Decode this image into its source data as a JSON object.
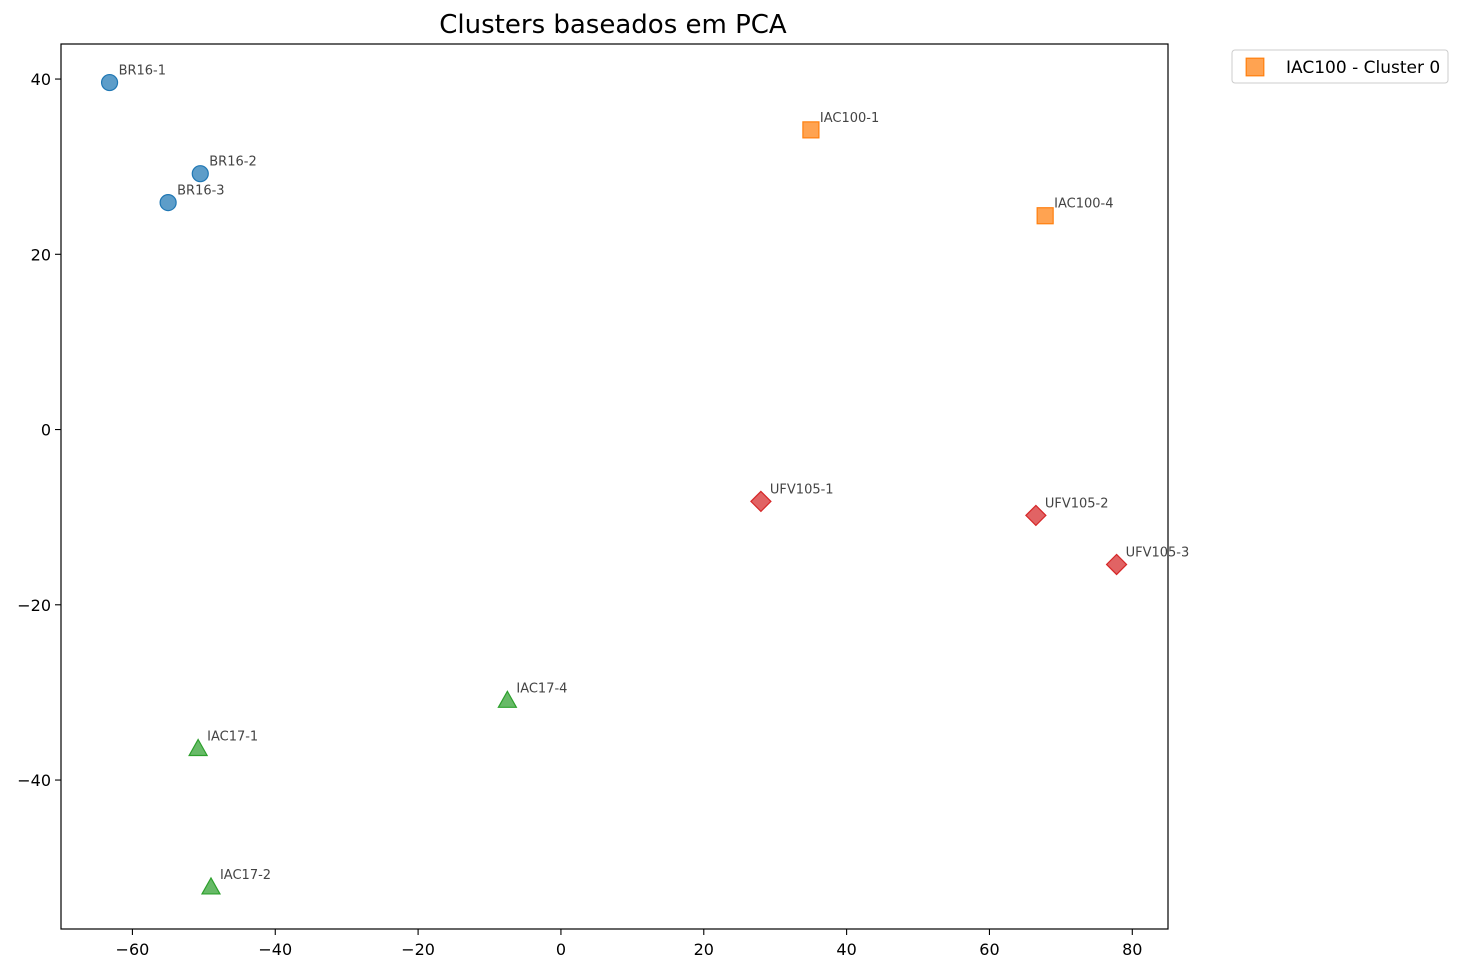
{
  "chart_data": {
    "type": "scatter",
    "title": "Clusters baseados em PCA",
    "xlabel": "",
    "ylabel": "",
    "xlim": [
      -70,
      85
    ],
    "ylim": [
      -57,
      44
    ],
    "x_ticks": [
      -60,
      -40,
      -20,
      0,
      20,
      40,
      60,
      80
    ],
    "y_ticks": [
      -40,
      -20,
      0,
      20,
      40
    ],
    "grid": false,
    "legend_position": "outside-top-right",
    "legend_entries": [
      {
        "label": "IAC100 - Cluster 0",
        "marker": "square",
        "color": "#ff7f0e"
      }
    ],
    "series": [
      {
        "marker": "circle",
        "color": "#1f77b4",
        "points": [
          {
            "label": "BR16-1",
            "x": -63.2,
            "y": 39.6
          },
          {
            "label": "BR16-2",
            "x": -50.5,
            "y": 29.2
          },
          {
            "label": "BR16-3",
            "x": -55.0,
            "y": 25.9
          }
        ]
      },
      {
        "marker": "square",
        "color": "#ff7f0e",
        "points": [
          {
            "label": "IAC100-1",
            "x": 35.0,
            "y": 34.2
          },
          {
            "label": "IAC100-4",
            "x": 67.8,
            "y": 24.4
          }
        ]
      },
      {
        "marker": "triangle",
        "color": "#2ca02c",
        "points": [
          {
            "label": "IAC17-1",
            "x": -50.8,
            "y": -36.4
          },
          {
            "label": "IAC17-2",
            "x": -49.0,
            "y": -52.2
          },
          {
            "label": "IAC17-4",
            "x": -7.5,
            "y": -30.9
          }
        ]
      },
      {
        "marker": "diamond",
        "color": "#d62728",
        "points": [
          {
            "label": "UFV105-1",
            "x": 28.0,
            "y": -8.2
          },
          {
            "label": "UFV105-2",
            "x": 66.5,
            "y": -9.8
          },
          {
            "label": "UFV105-3",
            "x": 77.8,
            "y": -15.4
          }
        ]
      }
    ]
  }
}
